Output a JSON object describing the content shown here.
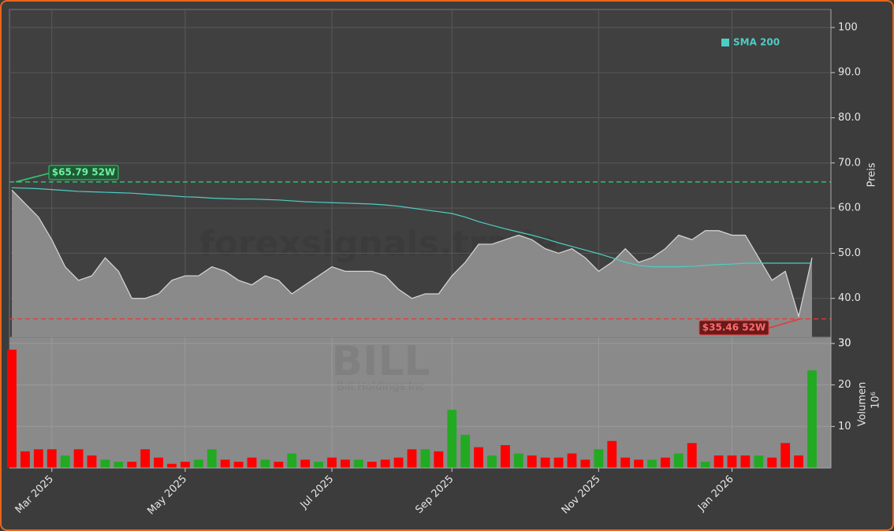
{
  "chart_data": {
    "type": "stock",
    "watermark": "forexsignals.trade",
    "symbol": "BILL",
    "company": "Bill Holdings Inc",
    "categories": [
      null,
      null,
      null,
      "Mar 2025",
      null,
      null,
      null,
      null,
      null,
      null,
      null,
      null,
      null,
      "May 2025",
      null,
      null,
      null,
      null,
      null,
      null,
      null,
      null,
      null,
      null,
      "Jul 2025",
      null,
      null,
      null,
      null,
      null,
      null,
      null,
      null,
      "Sep 2025",
      null,
      null,
      null,
      null,
      null,
      null,
      null,
      null,
      null,
      null,
      "Nov 2025",
      null,
      null,
      null,
      null,
      null,
      null,
      null,
      null,
      null,
      "Jan 2026",
      null,
      null,
      null,
      null,
      null,
      null
    ],
    "price": {
      "color": "#8a8a8a",
      "line_color": "#d8d8d8",
      "values": [
        64,
        61,
        58,
        53,
        47,
        44,
        45,
        49,
        46,
        40,
        40,
        41,
        44,
        45,
        45,
        47,
        46,
        44,
        43,
        45,
        44,
        41,
        43,
        45,
        47,
        46,
        46,
        46,
        45,
        42,
        40,
        41,
        41,
        45,
        48,
        52,
        52,
        53,
        54,
        53,
        51,
        50,
        51,
        49,
        46,
        48,
        51,
        48,
        49,
        51,
        54,
        53,
        55,
        55,
        54,
        54,
        49,
        44,
        46,
        36,
        49
      ]
    },
    "series": [
      {
        "name": "SMA 200",
        "color": "#4ecdc4",
        "values": [
          64.5,
          64.4,
          64.3,
          64.1,
          63.9,
          63.7,
          63.6,
          63.5,
          63.4,
          63.3,
          63.1,
          62.9,
          62.7,
          62.5,
          62.4,
          62.2,
          62.1,
          62.0,
          62.0,
          61.9,
          61.8,
          61.6,
          61.4,
          61.3,
          61.2,
          61.1,
          61.0,
          60.9,
          60.7,
          60.4,
          60.0,
          59.6,
          59.2,
          58.8,
          58.0,
          57.0,
          56.2,
          55.4,
          54.7,
          54.0,
          53.2,
          52.3,
          51.5,
          50.7,
          49.9,
          49.0,
          48.0,
          47.3,
          47.0,
          47.0,
          47.0,
          47.1,
          47.3,
          47.5,
          47.6,
          47.8,
          47.8,
          47.8,
          47.8,
          47.8,
          47.8
        ]
      }
    ],
    "hlines": [
      {
        "value": 65.79,
        "label": "$65.79 52W",
        "color": "#2ecc71"
      },
      {
        "value": 35.46,
        "label": "$35.46 52W",
        "color": "#e53935"
      }
    ],
    "ylabel": "Preis",
    "ylim": [
      31.4,
      104
    ],
    "yticks": [
      30,
      {
        "value": 40,
        "label": "40.0"
      },
      {
        "value": 50,
        "label": "50.0"
      },
      {
        "value": 60,
        "label": "60.0"
      },
      {
        "value": 70,
        "label": "70.0"
      },
      {
        "value": 80,
        "label": "80.0"
      },
      {
        "value": 90,
        "label": "90.0"
      },
      100
    ],
    "grid": true,
    "legend": "upper right",
    "volume": {
      "ylabel": "Volumen",
      "scale_label": "10⁶",
      "ylim": [
        0,
        31.5
      ],
      "yticks": [
        10,
        20,
        30
      ],
      "values": [
        28.5,
        4,
        4.5,
        4.5,
        3,
        4.5,
        3,
        2,
        1.5,
        1.5,
        4.5,
        2.5,
        1,
        1.5,
        2,
        4.5,
        2,
        1.5,
        2.5,
        2,
        1.5,
        3.5,
        2,
        1.5,
        2.5,
        2,
        2,
        1.5,
        2,
        2.5,
        4.5,
        4.5,
        4,
        14,
        8,
        5,
        3,
        5.5,
        3.5,
        3,
        2.5,
        2.5,
        3.5,
        2,
        4.5,
        6.5,
        2.5,
        2,
        2,
        2.5,
        3.5,
        6,
        1.5,
        3,
        3,
        3,
        3,
        2.5,
        6,
        3,
        23.5
      ],
      "colors": [
        "#ff0000",
        "#ff0000",
        "#ff0000",
        "#ff0000",
        "#22aa22",
        "#ff0000",
        "#ff0000",
        "#22aa22",
        "#22aa22",
        "#ff0000",
        "#ff0000",
        "#ff0000",
        "#ff0000",
        "#ff0000",
        "#22aa22",
        "#22aa22",
        "#ff0000",
        "#ff0000",
        "#ff0000",
        "#22aa22",
        "#ff0000",
        "#22aa22",
        "#ff0000",
        "#22aa22",
        "#ff0000",
        "#ff0000",
        "#22aa22",
        "#ff0000",
        "#ff0000",
        "#ff0000",
        "#ff0000",
        "#22aa22",
        "#ff0000",
        "#22aa22",
        "#22aa22",
        "#ff0000",
        "#22aa22",
        "#ff0000",
        "#22aa22",
        "#ff0000",
        "#ff0000",
        "#ff0000",
        "#ff0000",
        "#ff0000",
        "#22aa22",
        "#ff0000",
        "#ff0000",
        "#ff0000",
        "#22aa22",
        "#ff0000",
        "#22aa22",
        "#ff0000",
        "#22aa22",
        "#ff0000",
        "#ff0000",
        "#ff0000",
        "#22aa22",
        "#ff0000",
        "#ff0000",
        "#ff0000",
        "#22aa22"
      ]
    }
  }
}
